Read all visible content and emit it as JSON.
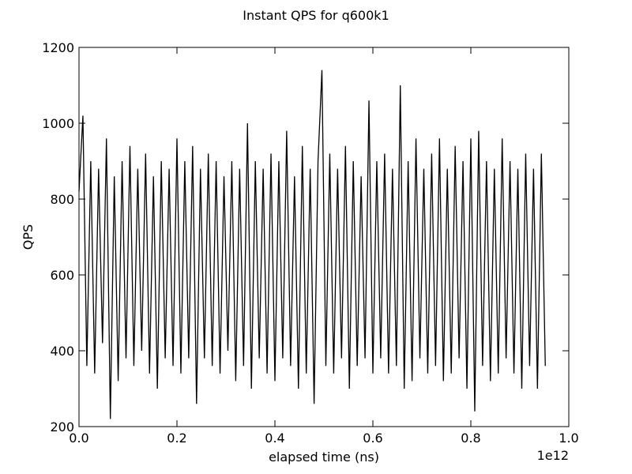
{
  "chart_data": {
    "type": "line",
    "title": "Instant QPS for q600k1",
    "x_label": "elapsed time (ns)",
    "y_label": "QPS",
    "x_offset_label": "1e12",
    "color": "#000000",
    "xlim": [
      0,
      1000000000000
    ],
    "ylim": [
      200,
      1200
    ],
    "xticks": [
      {
        "value": 0,
        "label": "0.0"
      },
      {
        "value": 200000000000,
        "label": "0.2"
      },
      {
        "value": 400000000000,
        "label": "0.4"
      },
      {
        "value": 600000000000,
        "label": "0.6"
      },
      {
        "value": 800000000000,
        "label": "0.8"
      },
      {
        "value": 1000000000000,
        "label": "1.0"
      }
    ],
    "yticks": [
      200,
      400,
      600,
      800,
      1000,
      1200
    ],
    "x": [
      0,
      8000000000.0,
      16000000000.0,
      24000000000.0,
      32000000000.0,
      40000000000.0,
      48000000000.0,
      56000000000.0,
      64000000000.0,
      72000000000.0,
      80000000000.0,
      88000000000.0,
      96000000000.0,
      104000000000.0,
      112000000000.0,
      120000000000.0,
      128000000000.0,
      136000000000.0,
      144000000000.0,
      152000000000.0,
      160000000000.0,
      168000000000.0,
      176000000000.0,
      184000000000.0,
      192000000000.0,
      200000000000.0,
      208000000000.0,
      216000000000.0,
      224000000000.0,
      232000000000.0,
      240000000000.0,
      248000000000.0,
      256000000000.0,
      264000000000.0,
      272000000000.0,
      280000000000.0,
      288000000000.0,
      296000000000.0,
      304000000000.0,
      312000000000.0,
      320000000000.0,
      328000000000.0,
      336000000000.0,
      344000000000.0,
      352000000000.0,
      360000000000.0,
      368000000000.0,
      376000000000.0,
      384000000000.0,
      392000000000.0,
      400000000000.0,
      408000000000.0,
      416000000000.0,
      424000000000.0,
      432000000000.0,
      440000000000.0,
      448000000000.0,
      456000000000.0,
      464000000000.0,
      472000000000.0,
      480000000000.0,
      488000000000.0,
      496000000000.0,
      504000000000.0,
      512000000000.0,
      520000000000.0,
      528000000000.0,
      536000000000.0,
      544000000000.0,
      552000000000.0,
      560000000000.0,
      568000000000.0,
      576000000000.0,
      584000000000.0,
      592000000000.0,
      600000000000.0,
      608000000000.0,
      616000000000.0,
      624000000000.0,
      632000000000.0,
      640000000000.0,
      648000000000.0,
      656000000000.0,
      664000000000.0,
      672000000000.0,
      680000000000.0,
      688000000000.0,
      696000000000.0,
      704000000000.0,
      712000000000.0,
      720000000000.0,
      728000000000.0,
      736000000000.0,
      744000000000.0,
      752000000000.0,
      760000000000.0,
      768000000000.0,
      776000000000.0,
      784000000000.0,
      792000000000.0,
      800000000000.0,
      808000000000.0,
      816000000000.0,
      824000000000.0,
      832000000000.0,
      840000000000.0,
      848000000000.0,
      856000000000.0,
      864000000000.0,
      872000000000.0,
      880000000000.0,
      888000000000.0,
      896000000000.0,
      904000000000.0,
      912000000000.0,
      920000000000.0,
      928000000000.0,
      936000000000.0,
      944000000000.0,
      952000000000.0
    ],
    "values": [
      820,
      1020,
      360,
      900,
      340,
      880,
      420,
      960,
      220,
      860,
      320,
      900,
      380,
      940,
      360,
      880,
      400,
      920,
      340,
      860,
      300,
      900,
      380,
      880,
      360,
      960,
      340,
      900,
      380,
      940,
      260,
      880,
      380,
      920,
      360,
      900,
      340,
      860,
      400,
      900,
      320,
      880,
      360,
      1000,
      300,
      900,
      380,
      880,
      340,
      920,
      320,
      900,
      380,
      980,
      360,
      860,
      300,
      940,
      340,
      880,
      260,
      900,
      1140,
      360,
      920,
      340,
      880,
      380,
      940,
      300,
      900,
      360,
      860,
      380,
      1060,
      340,
      900,
      380,
      920,
      340,
      880,
      360,
      1100,
      300,
      900,
      320,
      960,
      380,
      880,
      340,
      920,
      360,
      960,
      320,
      880,
      340,
      940,
      380,
      900,
      300,
      960,
      240,
      980,
      360,
      900,
      320,
      880,
      340,
      960,
      380,
      900,
      340,
      880,
      300,
      920,
      360,
      880,
      300,
      920,
      360
    ]
  }
}
